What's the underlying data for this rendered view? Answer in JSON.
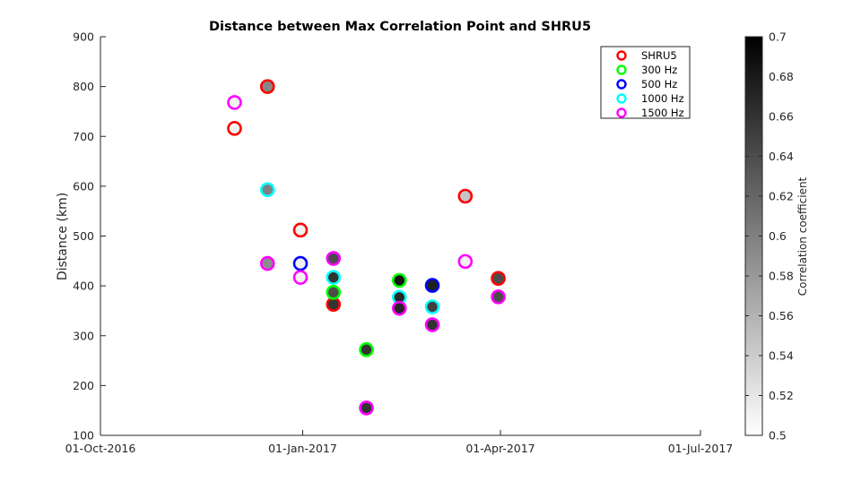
{
  "chart_data": {
    "type": "scatter",
    "title": "Distance between Max Correlation Point and SHRU5",
    "xlabel": "",
    "ylabel": "Distance (km)",
    "x_axis": {
      "type": "date",
      "ticks": [
        "2016-10-01",
        "2017-01-01",
        "2017-04-01",
        "2017-07-01"
      ],
      "tick_labels": [
        "01-Oct-2016",
        "01-Jan-2017",
        "01-Apr-2017",
        "01-Jul-2017"
      ],
      "range": [
        "2016-10-01",
        "2017-07-01"
      ]
    },
    "y_axis": {
      "ticks": [
        100,
        200,
        300,
        400,
        500,
        600,
        700,
        800,
        900
      ],
      "range": [
        100,
        900
      ]
    },
    "colorbar": {
      "label": "Correlation coefficient",
      "range": [
        0.5,
        0.7
      ],
      "ticks": [
        0.5,
        0.52,
        0.54,
        0.56,
        0.58,
        0.6,
        0.62,
        0.64,
        0.66,
        0.68,
        0.7
      ],
      "colormap": "gray-reversed",
      "low_color": "#ffffff",
      "high_color": "#000000"
    },
    "legend": {
      "placement": "top-right",
      "box": true
    },
    "grid": false,
    "series": [
      {
        "name": "SHRU5",
        "edge_color": "#ff0000",
        "points": [
          {
            "x": "2016-12-01",
            "y": 716,
            "c": 0.51
          },
          {
            "x": "2016-12-16",
            "y": 800,
            "c": 0.595
          },
          {
            "x": "2016-12-31",
            "y": 512,
            "c": 0.51
          },
          {
            "x": "2017-01-15",
            "y": 363,
            "c": 0.66
          },
          {
            "x": "2017-03-16",
            "y": 580,
            "c": 0.545
          },
          {
            "x": "2017-03-31",
            "y": 415,
            "c": 0.64
          }
        ]
      },
      {
        "name": "300 Hz",
        "edge_color": "#00ff00",
        "points": [
          {
            "x": "2017-01-15",
            "y": 387,
            "c": 0.64
          },
          {
            "x": "2017-01-30",
            "y": 272,
            "c": 0.66
          },
          {
            "x": "2017-02-14",
            "y": 411,
            "c": 0.685
          }
        ]
      },
      {
        "name": "500 Hz",
        "edge_color": "#0000ff",
        "points": [
          {
            "x": "2016-12-31",
            "y": 445,
            "c": 0.51
          },
          {
            "x": "2017-03-01",
            "y": 401,
            "c": 0.675
          }
        ]
      },
      {
        "name": "1000 Hz",
        "edge_color": "#00ffff",
        "points": [
          {
            "x": "2016-12-16",
            "y": 593,
            "c": 0.6
          },
          {
            "x": "2017-01-15",
            "y": 417,
            "c": 0.66
          },
          {
            "x": "2017-02-14",
            "y": 377,
            "c": 0.67
          },
          {
            "x": "2017-03-01",
            "y": 358,
            "c": 0.65
          }
        ]
      },
      {
        "name": "1500 Hz",
        "edge_color": "#ff00ff",
        "points": [
          {
            "x": "2016-12-01",
            "y": 768,
            "c": 0.51
          },
          {
            "x": "2016-12-16",
            "y": 445,
            "c": 0.59
          },
          {
            "x": "2016-12-31",
            "y": 417,
            "c": 0.51
          },
          {
            "x": "2017-01-15",
            "y": 455,
            "c": 0.64
          },
          {
            "x": "2017-01-30",
            "y": 155,
            "c": 0.66
          },
          {
            "x": "2017-02-14",
            "y": 355,
            "c": 0.67
          },
          {
            "x": "2017-03-01",
            "y": 322,
            "c": 0.66
          },
          {
            "x": "2017-03-16",
            "y": 449,
            "c": 0.51
          },
          {
            "x": "2017-03-31",
            "y": 378,
            "c": 0.64
          }
        ]
      }
    ]
  }
}
